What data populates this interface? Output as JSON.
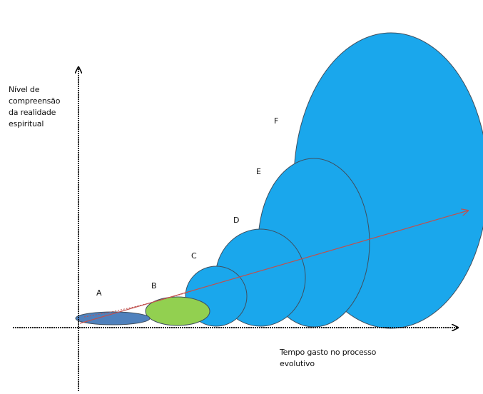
{
  "y_axis_label": "Nível de\ncompreensão\nda realidade\nespiritual",
  "x_axis_label": "Tempo gasto no processo\nevolutivo",
  "stages": [
    {
      "letter": "A",
      "color": "#4f81bd"
    },
    {
      "letter": "B",
      "color": "#92d050"
    },
    {
      "letter": "C",
      "color": "#1aa7ec"
    },
    {
      "letter": "D",
      "color": "#1aa7ec"
    },
    {
      "letter": "E",
      "color": "#1aa7ec"
    },
    {
      "letter": "F",
      "color": "#1aa7ec"
    }
  ],
  "colors": {
    "axis": "#000000",
    "outline": "#3f4f5f",
    "trend_arrow": "#c0504d"
  }
}
